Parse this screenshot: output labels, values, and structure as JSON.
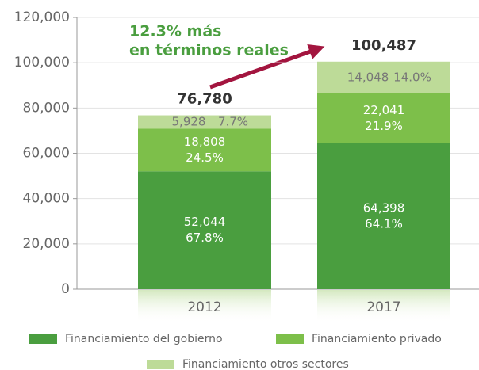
{
  "chart_data": {
    "type": "stacked_bar",
    "categories": [
      "2012",
      "2017"
    ],
    "series": [
      {
        "name": "Financiamiento del gobierno",
        "color": "#4a9e3f",
        "values": [
          52044,
          64398
        ],
        "value_labels": [
          "52,044",
          "64,398"
        ],
        "share_labels": [
          "67.8%",
          "64.1%"
        ]
      },
      {
        "name": "Financiamiento privado",
        "color": "#7dbf4a",
        "values": [
          18808,
          22041
        ],
        "value_labels": [
          "18,808",
          "22,041"
        ],
        "share_labels": [
          "24.5%",
          "21.9%"
        ]
      },
      {
        "name": "Financiamiento otros sectores",
        "color": "#bddb98",
        "values": [
          5928,
          14048
        ],
        "value_labels": [
          "5,928",
          "14,048"
        ],
        "share_labels": [
          "7.7%",
          "14.0%"
        ]
      }
    ],
    "total_labels": [
      "76,780",
      "100,487"
    ],
    "annotation": [
      "12.3% más",
      "en términos reales"
    ],
    "ylim": [
      0,
      120000
    ],
    "yticks": [
      0,
      {
        "value": 20000,
        "label": "20,000"
      },
      {
        "value": 40000,
        "label": "40,000"
      },
      {
        "value": 60000,
        "label": "60,000"
      },
      {
        "value": 80000,
        "label": "80,000"
      },
      {
        "value": 100000,
        "label": "100,000"
      },
      {
        "value": 120000,
        "label": "120,000"
      }
    ],
    "grid": true
  }
}
